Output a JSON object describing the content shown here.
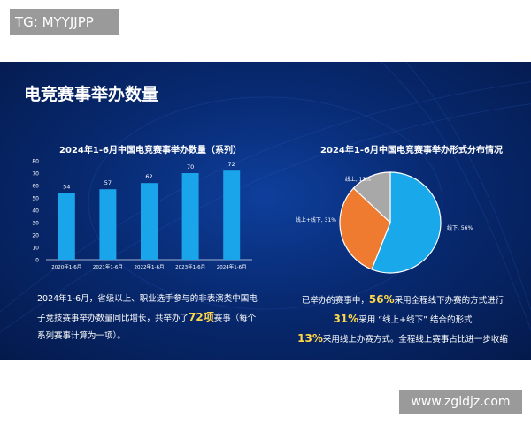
{
  "watermark_top": "TG: MYYJJPP",
  "watermark_bottom": "www.zgldjz.com",
  "panel_title": "电竞赛事举办数量",
  "colors": {
    "bar": "#1aa5ea",
    "pie_offline": "#19a8ea",
    "pie_mixed": "#ee7b30",
    "pie_online": "#a8a8a8",
    "highlight": "#ffd84a"
  },
  "chart_data": [
    {
      "type": "bar",
      "title": "2024年1-6月中国电竞赛事举办数量（系列）",
      "categories": [
        "2020年1-6月",
        "2021年1-6月",
        "2022年1-6月",
        "2023年1-6月",
        "2024年1-6月"
      ],
      "values": [
        54,
        57,
        62,
        70,
        72
      ],
      "ylim": [
        0,
        80
      ],
      "yticks": [
        "0",
        "10",
        "20",
        "30",
        "40",
        "50",
        "60",
        "70",
        "80"
      ],
      "grid": false
    },
    {
      "type": "pie",
      "title": "2024年1-6月中国电竞赛事举办形式分布情况",
      "slices": [
        {
          "label": "线下, 56%",
          "value": 56
        },
        {
          "label": "线上+线下, 31%",
          "value": 31
        },
        {
          "label": "线上, 13%",
          "value": 13
        }
      ]
    }
  ],
  "left_text": {
    "part1": "2024年1-6月，省级以上、职业选手参与的非表演类中国电子竞技赛事举办数量同比增长，共举办了",
    "highlight": "72项",
    "part2": "赛事（每个系列赛事计算为一项）。"
  },
  "right_text": {
    "line1_pre": "已举办的赛事中，",
    "line1_hl": "56%",
    "line1_post": "采用全程线下办赛的方式进行",
    "line2_hl": "31%",
    "line2_post": "采用 “线上+线下” 结合的形式",
    "line3_hl": "13%",
    "line3_post": "采用线上办赛方式。全程线上赛事占比进一步收缩"
  }
}
